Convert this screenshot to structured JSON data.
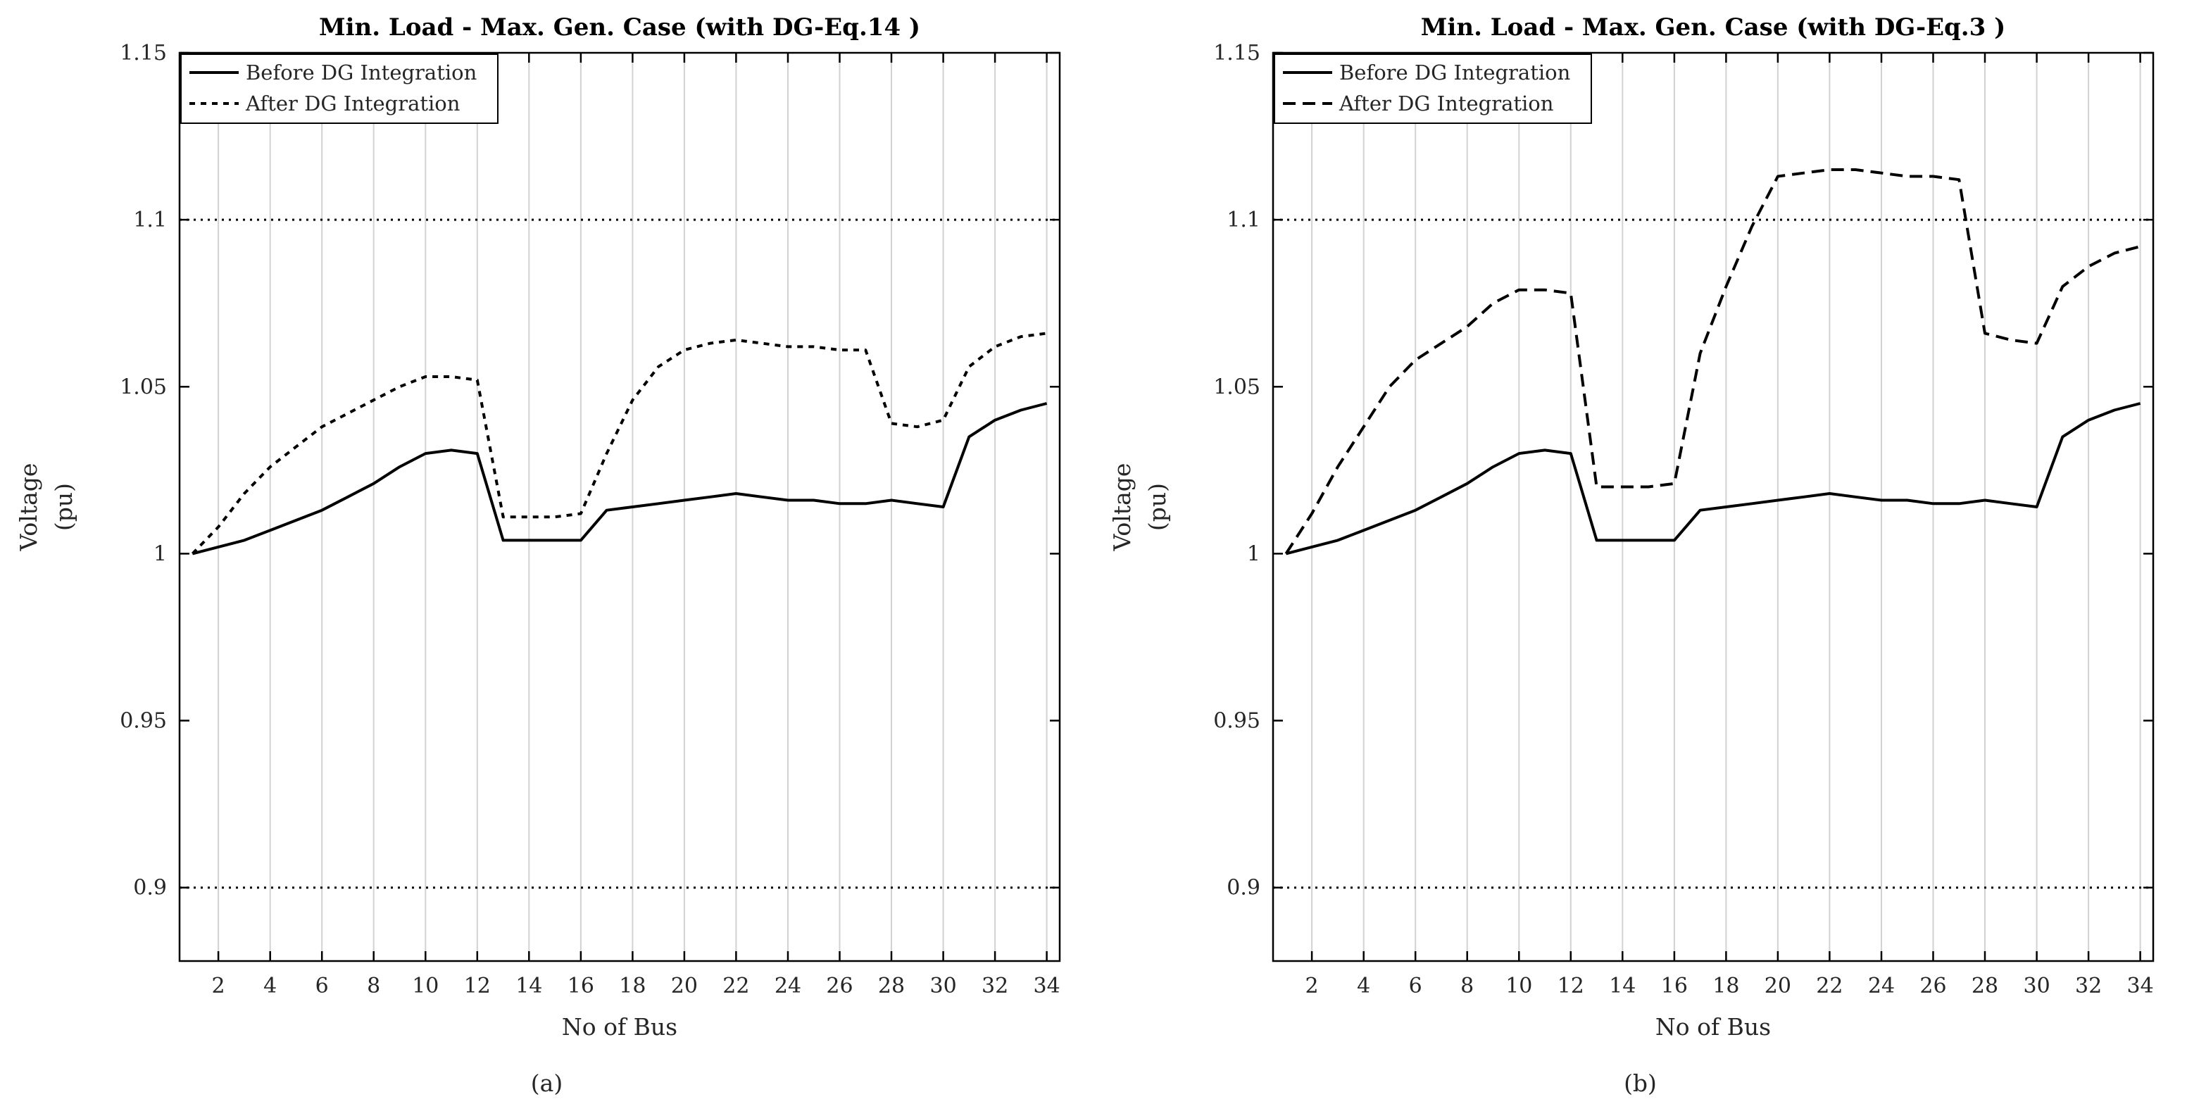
{
  "colors": {
    "line": "#000000",
    "grid": "#d2d2d2",
    "background": "#ffffff",
    "legend_border": "#000000",
    "text": "#262626"
  },
  "chart_data": [
    {
      "id": "a",
      "type": "line",
      "title": "Min. Load - Max. Gen. Case (with DG-Eq.14 )",
      "xlabel": "No of Bus",
      "ylabel_lines": [
        "Voltage",
        "(pu)"
      ],
      "caption": "(a)",
      "xlim": [
        0.5,
        34.5
      ],
      "ylim": [
        0.878,
        1.15
      ],
      "xticks": [
        2,
        4,
        6,
        8,
        10,
        12,
        14,
        16,
        18,
        20,
        22,
        24,
        26,
        28,
        30,
        32,
        34
      ],
      "yticks": [
        0.9,
        0.95,
        1,
        1.05,
        1.1,
        1.15
      ],
      "ytick_labels": [
        "0.9",
        "0.95",
        "1",
        "1.05",
        "1.1",
        "1.15"
      ],
      "grid": "vertical",
      "legend_position": "top-left",
      "limit_lines": [
        1.1,
        0.9
      ],
      "x": [
        1,
        2,
        3,
        4,
        5,
        6,
        7,
        8,
        9,
        10,
        11,
        12,
        13,
        14,
        15,
        16,
        17,
        18,
        19,
        20,
        21,
        22,
        23,
        24,
        25,
        26,
        27,
        28,
        29,
        30,
        31,
        32,
        33,
        34
      ],
      "series": [
        {
          "name": "Before DG Integration",
          "linestyle": "solid",
          "values": [
            1.0,
            1.002,
            1.004,
            1.007,
            1.01,
            1.013,
            1.017,
            1.021,
            1.026,
            1.03,
            1.031,
            1.03,
            1.004,
            1.004,
            1.004,
            1.004,
            1.013,
            1.014,
            1.015,
            1.016,
            1.017,
            1.018,
            1.017,
            1.016,
            1.016,
            1.015,
            1.015,
            1.016,
            1.015,
            1.014,
            1.035,
            1.04,
            1.043,
            1.045
          ]
        },
        {
          "name": "After DG Integration",
          "linestyle": "dense-dash",
          "values": [
            1.0,
            1.008,
            1.018,
            1.026,
            1.032,
            1.038,
            1.042,
            1.046,
            1.05,
            1.053,
            1.053,
            1.052,
            1.011,
            1.011,
            1.011,
            1.012,
            1.03,
            1.046,
            1.056,
            1.061,
            1.063,
            1.064,
            1.063,
            1.062,
            1.062,
            1.061,
            1.061,
            1.039,
            1.038,
            1.04,
            1.056,
            1.062,
            1.065,
            1.066
          ]
        }
      ]
    },
    {
      "id": "b",
      "type": "line",
      "title": "Min. Load - Max. Gen. Case (with DG-Eq.3 )",
      "xlabel": "No of Bus",
      "ylabel_lines": [
        "Voltage",
        "(pu)"
      ],
      "caption": "(b)",
      "xlim": [
        0.5,
        34.5
      ],
      "ylim": [
        0.878,
        1.15
      ],
      "xticks": [
        2,
        4,
        6,
        8,
        10,
        12,
        14,
        16,
        18,
        20,
        22,
        24,
        26,
        28,
        30,
        32,
        34
      ],
      "yticks": [
        0.9,
        0.95,
        1,
        1.05,
        1.1,
        1.15
      ],
      "ytick_labels": [
        "0.9",
        "0.95",
        "1",
        "1.05",
        "1.1",
        "1.15"
      ],
      "grid": "vertical",
      "legend_position": "top-left",
      "limit_lines": [
        1.1,
        0.9
      ],
      "x": [
        1,
        2,
        3,
        4,
        5,
        6,
        7,
        8,
        9,
        10,
        11,
        12,
        13,
        14,
        15,
        16,
        17,
        18,
        19,
        20,
        21,
        22,
        23,
        24,
        25,
        26,
        27,
        28,
        29,
        30,
        31,
        32,
        33,
        34
      ],
      "series": [
        {
          "name": "Before DG Integration",
          "linestyle": "solid",
          "values": [
            1.0,
            1.002,
            1.004,
            1.007,
            1.01,
            1.013,
            1.017,
            1.021,
            1.026,
            1.03,
            1.031,
            1.03,
            1.004,
            1.004,
            1.004,
            1.004,
            1.013,
            1.014,
            1.015,
            1.016,
            1.017,
            1.018,
            1.017,
            1.016,
            1.016,
            1.015,
            1.015,
            1.016,
            1.015,
            1.014,
            1.035,
            1.04,
            1.043,
            1.045
          ]
        },
        {
          "name": "After DG Integration",
          "linestyle": "dashed",
          "values": [
            1.0,
            1.012,
            1.026,
            1.038,
            1.05,
            1.058,
            1.063,
            1.068,
            1.075,
            1.079,
            1.079,
            1.078,
            1.02,
            1.02,
            1.02,
            1.021,
            1.06,
            1.08,
            1.098,
            1.113,
            1.114,
            1.115,
            1.115,
            1.114,
            1.113,
            1.113,
            1.112,
            1.066,
            1.064,
            1.063,
            1.08,
            1.086,
            1.09,
            1.092
          ]
        }
      ]
    }
  ]
}
